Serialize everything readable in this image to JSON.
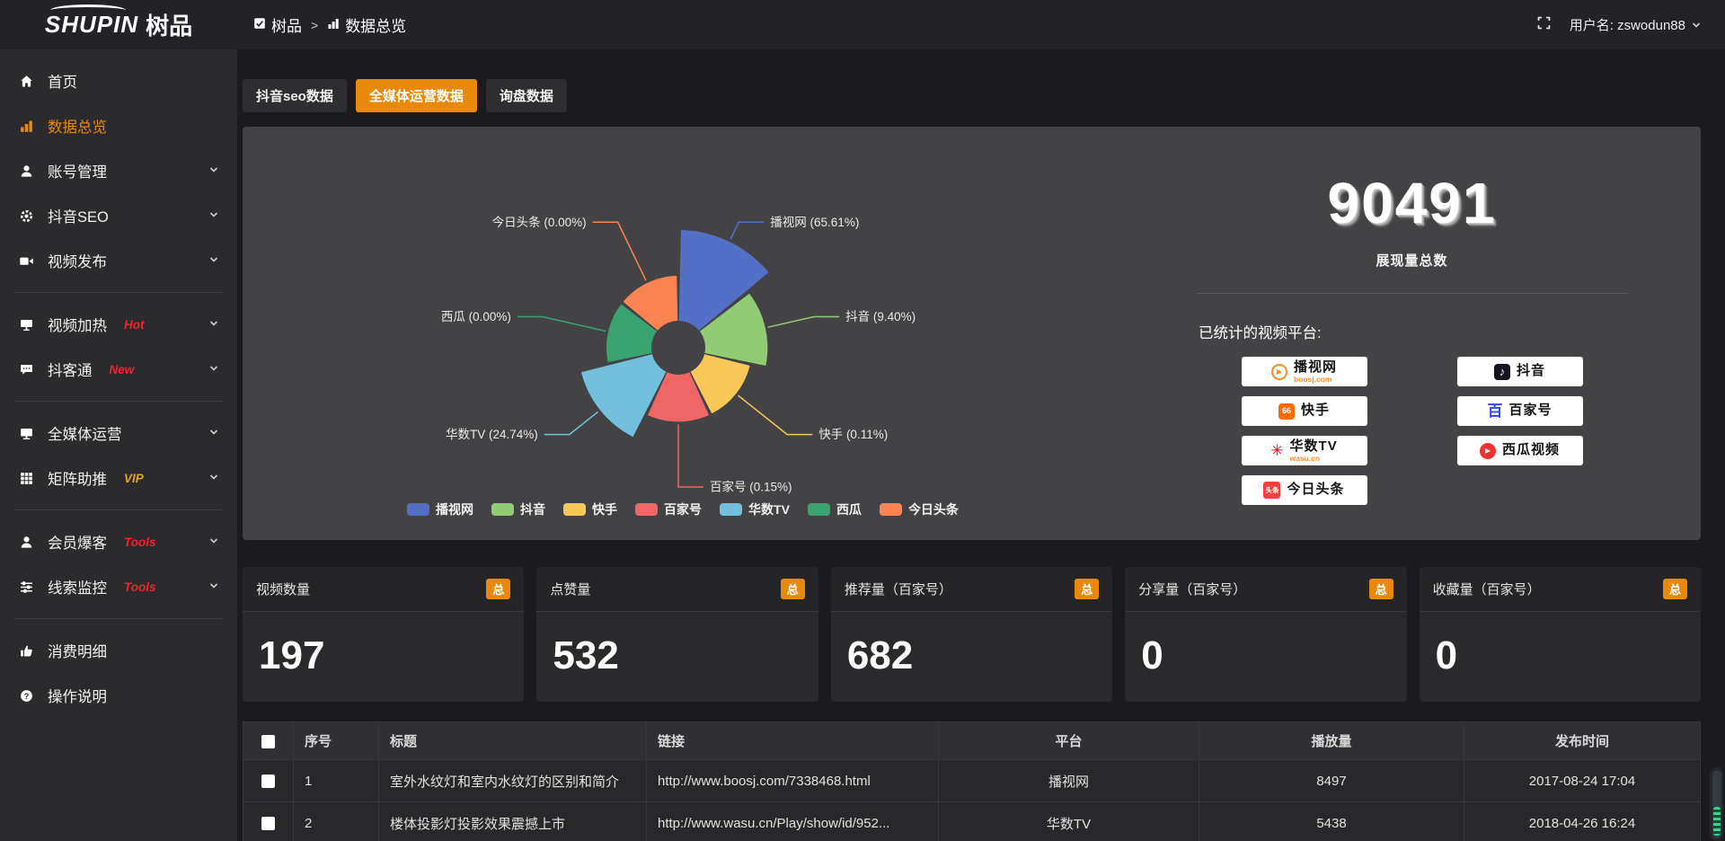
{
  "theme": {
    "accent_orange": "#e8890c",
    "badge_red": "#f5222d",
    "badge_gold": "#e6a524",
    "link_orange": "#e6882e",
    "card_bg": "#434346"
  },
  "header": {
    "logo_primary": "SHUPIN",
    "logo_secondary": "树品",
    "breadcrumb": [
      {
        "label": "树品"
      },
      {
        "label": "数据总览"
      }
    ],
    "breadcrumb_separator": ">",
    "username": "用户名: zswodun88"
  },
  "sidebar": {
    "items": [
      {
        "label": "首页",
        "icon": "home-icon"
      },
      {
        "label": "数据总览",
        "icon": "bar-chart-icon",
        "active": true
      },
      {
        "label": "账号管理",
        "icon": "user-icon",
        "expandable": true
      },
      {
        "label": "抖音SEO",
        "icon": "gear-icon",
        "expandable": true
      },
      {
        "label": "视频发布",
        "icon": "video-icon",
        "expandable": true
      },
      {
        "label": "视频加热",
        "icon": "screen-icon",
        "badge": "Hot",
        "badge_color": "#f5222d",
        "expandable": true
      },
      {
        "label": "抖客通",
        "icon": "chat-icon",
        "badge": "New",
        "badge_color": "#f5222d",
        "expandable": true
      },
      {
        "label": "全媒体运营",
        "icon": "monitor-icon",
        "expandable": true
      },
      {
        "label": "矩阵助推",
        "icon": "grid-icon",
        "badge": "VIP",
        "badge_color": "#e6a524",
        "expandable": true
      },
      {
        "label": "会员爆客",
        "icon": "member-icon",
        "badge": "Tools",
        "badge_color": "#f5222d",
        "expandable": true
      },
      {
        "label": "线索监控",
        "icon": "sliders-icon",
        "badge": "Tools",
        "badge_color": "#f5222d",
        "expandable": true
      },
      {
        "label": "消费明细",
        "icon": "spend-icon"
      },
      {
        "label": "操作说明",
        "icon": "help-icon"
      }
    ]
  },
  "tabs": [
    {
      "label": "抖音seo数据",
      "active": false
    },
    {
      "label": "全媒体运营数据",
      "active": true
    },
    {
      "label": "询盘数据",
      "active": false
    }
  ],
  "chart_data": {
    "type": "pie",
    "variant": "nightingale-rose",
    "legend_position": "bottom",
    "label_format": "{name} ({pct}%)",
    "items": [
      {
        "name": "播视网",
        "value_pct": 65.61,
        "color": "#5470c6"
      },
      {
        "name": "抖音",
        "value_pct": 9.4,
        "color": "#91cc75"
      },
      {
        "name": "快手",
        "value_pct": 0.11,
        "color": "#fac858"
      },
      {
        "name": "百家号",
        "value_pct": 0.15,
        "color": "#ee6666"
      },
      {
        "name": "华数TV",
        "value_pct": 24.74,
        "color": "#73c0de"
      },
      {
        "name": "西瓜",
        "value_pct": 0.0,
        "color": "#3ba272"
      },
      {
        "name": "今日头条",
        "value_pct": 0.0,
        "color": "#fc8452"
      }
    ]
  },
  "summary": {
    "total_value": "90491",
    "total_label": "展现量总数",
    "platforms_label": "已统计的视频平台:",
    "platforms": [
      {
        "name": "播视网",
        "sub": "boosj.com",
        "icon_glyph": "▶"
      },
      {
        "name": "快手",
        "sub": "",
        "icon_glyph": "66"
      },
      {
        "name": "华数TV",
        "sub": "wasu.cn",
        "icon_glyph": "✳"
      },
      {
        "name": "今日头条",
        "sub": "",
        "icon_glyph": "头条"
      },
      {
        "name": "抖音",
        "sub": "",
        "icon_glyph": "♪"
      },
      {
        "name": "百家号",
        "sub": "",
        "icon_glyph": "百"
      },
      {
        "name": "西瓜视频",
        "sub": "",
        "icon_glyph": "▶"
      }
    ]
  },
  "stat_cards": [
    {
      "title": "视频数量",
      "badge": "总",
      "value": "197"
    },
    {
      "title": "点赞量",
      "badge": "总",
      "value": "532"
    },
    {
      "title": "推荐量（百家号）",
      "badge": "总",
      "value": "682"
    },
    {
      "title": "分享量（百家号）",
      "badge": "总",
      "value": "0"
    },
    {
      "title": "收藏量（百家号）",
      "badge": "总",
      "value": "0"
    }
  ],
  "table": {
    "headers": {
      "no": "序号",
      "title": "标题",
      "link": "链接",
      "platform": "平台",
      "plays": "播放量",
      "time": "发布时间"
    },
    "rows": [
      {
        "no": "1",
        "title": "室外水纹灯和室内水纹灯的区别和简介",
        "link": "http://www.boosj.com/7338468.html",
        "platform": "播视网",
        "plays": "8497",
        "time": "2017-08-24 17:04"
      },
      {
        "no": "2",
        "title": "楼体投影灯投影效果震撼上市",
        "link": "http://www.wasu.cn/Play/show/id/952...",
        "platform": "华数TV",
        "plays": "5438",
        "time": "2018-04-26 16:24"
      }
    ]
  }
}
